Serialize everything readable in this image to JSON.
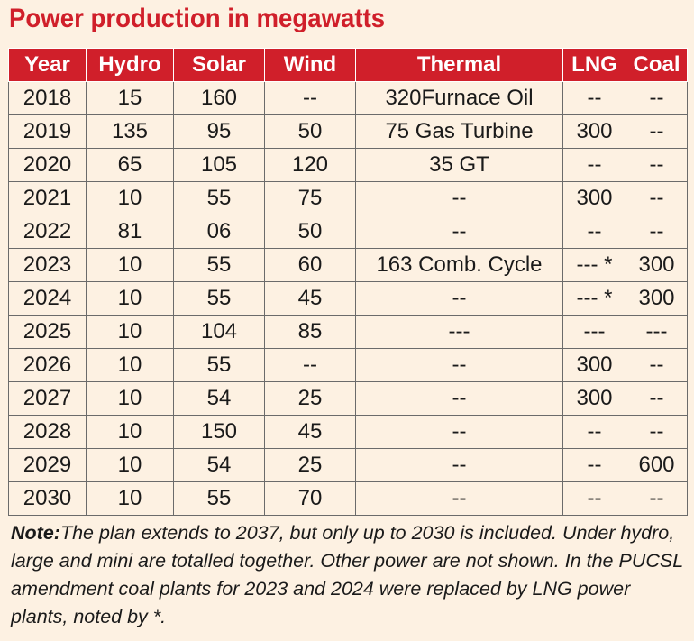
{
  "title": "Power production in megawatts",
  "columns": [
    "Year",
    "Hydro",
    "Solar",
    "Wind",
    "Thermal",
    "LNG",
    "Coal"
  ],
  "rows": [
    [
      "2018",
      "15",
      "160",
      "--",
      "320Furnace Oil",
      "--",
      "--"
    ],
    [
      "2019",
      "135",
      "95",
      "50",
      "75 Gas Turbine",
      "300",
      "--"
    ],
    [
      "2020",
      "65",
      "105",
      "120",
      "35 GT",
      "--",
      "--"
    ],
    [
      "2021",
      "10",
      "55",
      "75",
      "--",
      "300",
      "--"
    ],
    [
      "2022",
      "81",
      "06",
      "50",
      "--",
      "--",
      "--"
    ],
    [
      "2023",
      "10",
      "55",
      "60",
      "163 Comb. Cycle",
      "--- *",
      "300"
    ],
    [
      "2024",
      "10",
      "55",
      "45",
      "--",
      "--- *",
      "300"
    ],
    [
      "2025",
      "10",
      "104",
      "85",
      "---",
      "---",
      "---"
    ],
    [
      "2026",
      "10",
      "55",
      "--",
      "--",
      "300",
      "--"
    ],
    [
      "2027",
      "10",
      "54",
      "25",
      "--",
      "300",
      "--"
    ],
    [
      "2028",
      "10",
      "150",
      "45",
      "--",
      "--",
      "--"
    ],
    [
      "2029",
      "10",
      "54",
      "25",
      "--",
      "--",
      "600"
    ],
    [
      "2030",
      "10",
      "55",
      "70",
      "--",
      "--",
      "--"
    ]
  ],
  "note": {
    "label": "Note:",
    "text": "The plan extends to 2037, but only up to 2030 is included. Under hydro, large and mini are totalled together. Other power are not shown. In the PUCSL amendment coal plants for 2023 and 2024 were replaced by LNG power plants, noted by *."
  },
  "colors": {
    "accent": "#d01f2a",
    "background": "#fdf1e2",
    "text": "#1a1a1a"
  }
}
